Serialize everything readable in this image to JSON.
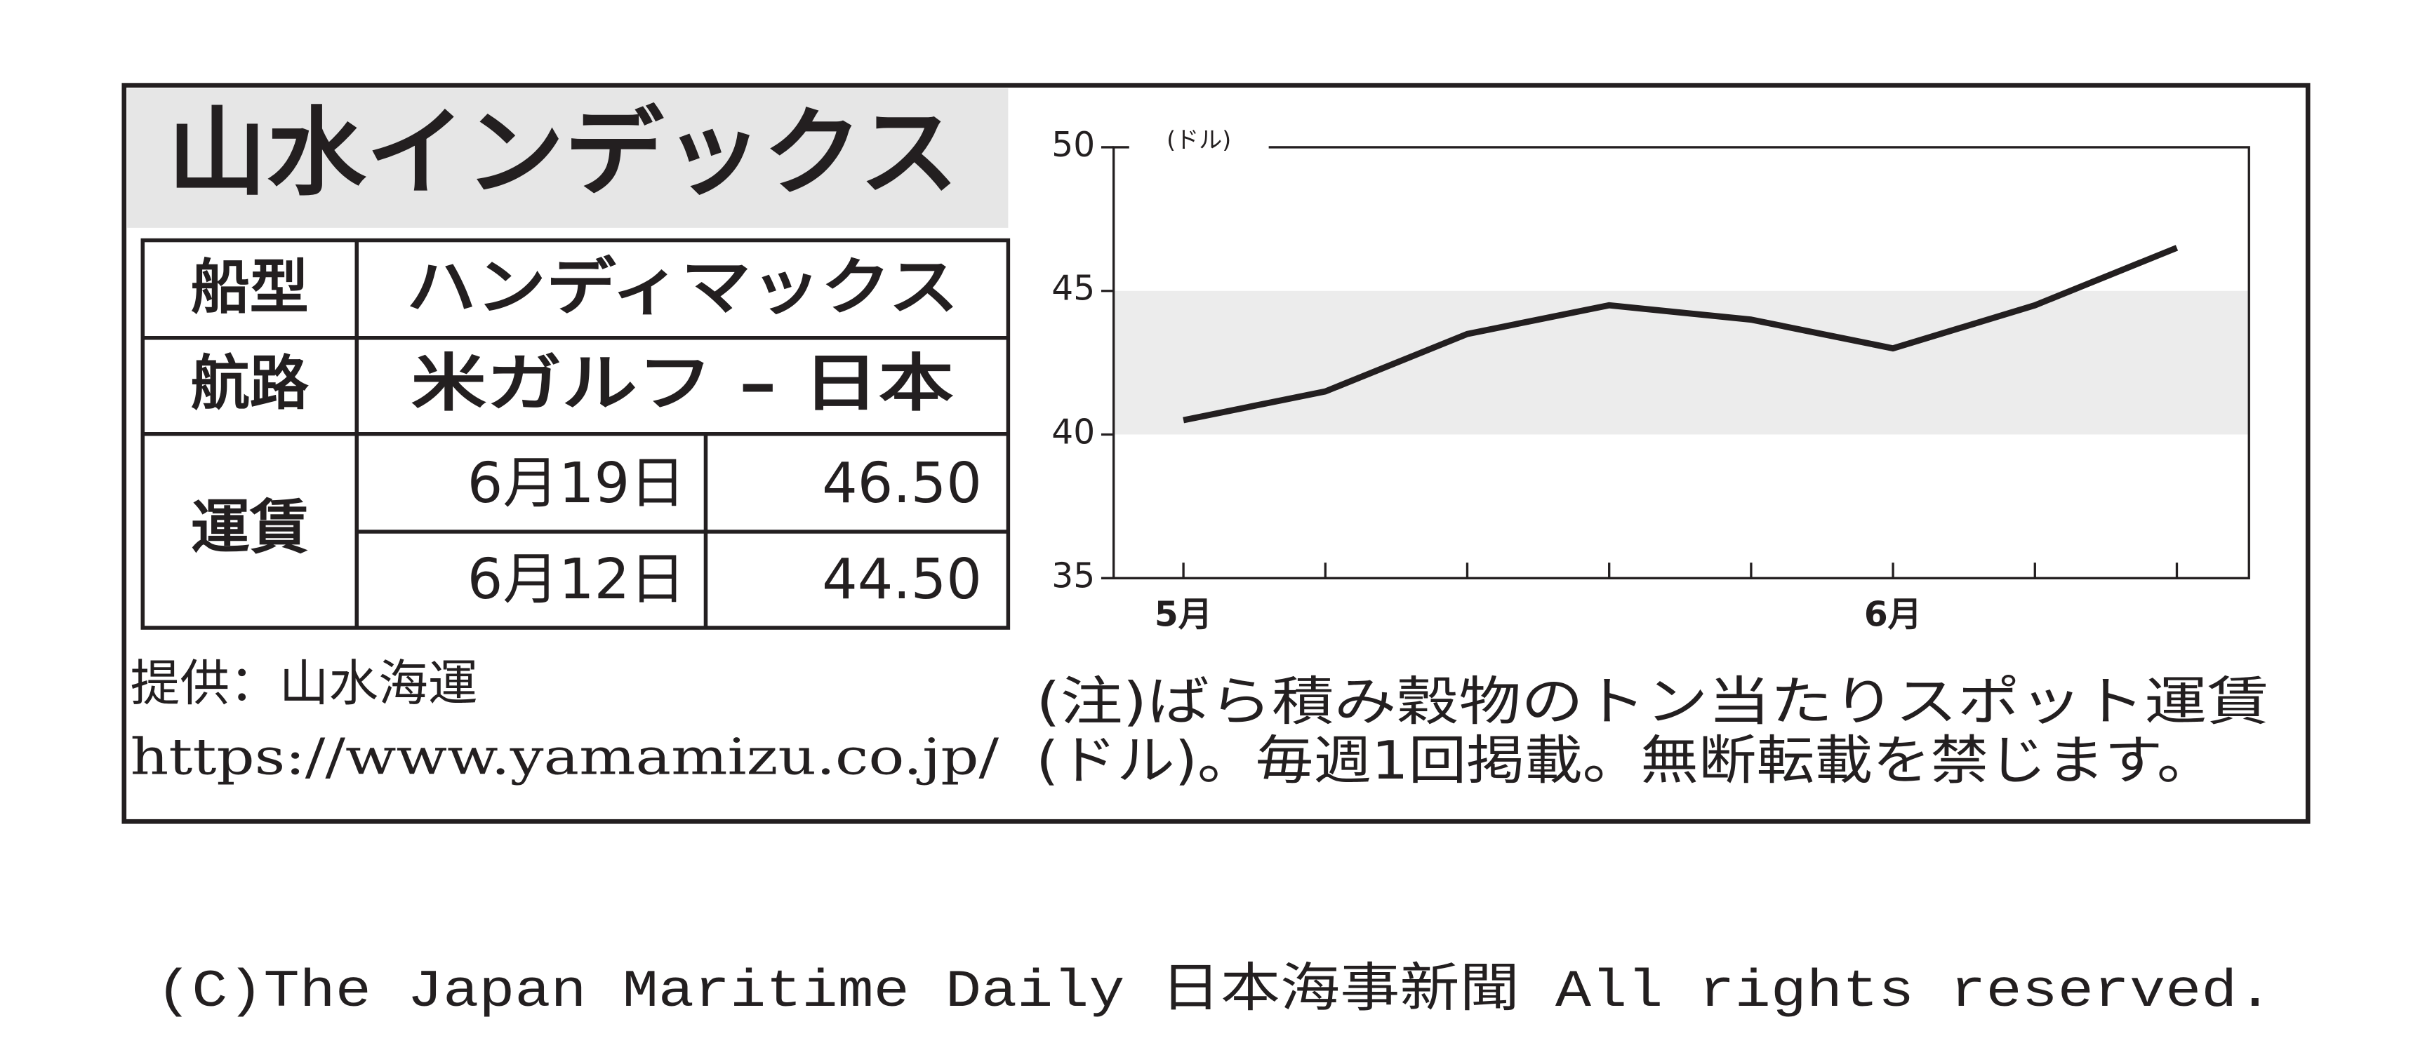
{
  "header": {
    "title": "山水インデックス"
  },
  "table": {
    "rows": [
      {
        "label": "船型",
        "value": "ハンディマックス"
      },
      {
        "label": "航路",
        "value": "米ガルフ – 日本"
      }
    ],
    "fare": {
      "label": "運賃",
      "entries": [
        {
          "date": "6月19日",
          "value": "46.50"
        },
        {
          "date": "6月12日",
          "value": "44.50"
        }
      ]
    }
  },
  "provider": "提供：山水海運",
  "url": "https://www.yamamizu.co.jp/",
  "note": [
    "(注)ばら積み穀物のトン当たりスポット運賃",
    "(ドル)。毎週1回掲載。無断転載を禁じます。"
  ],
  "copyright": "(C)The Japan Maritime Daily 日本海事新聞 All rights reserved.",
  "chart_data": {
    "type": "line",
    "y_label": "(ドル)",
    "categories": [
      "5月",
      null,
      null,
      null,
      null,
      "6月",
      null,
      null
    ],
    "values": [
      40.5,
      41.5,
      43.5,
      44.5,
      44,
      43,
      44.5,
      46.5
    ],
    "color": "#231f20",
    "ylim": [
      35,
      50
    ],
    "yticks": [
      35,
      40,
      45,
      50
    ],
    "band": [
      40,
      45
    ],
    "band_color": "#ececec"
  }
}
